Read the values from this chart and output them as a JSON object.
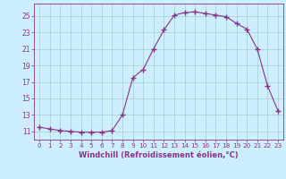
{
  "x": [
    0,
    1,
    2,
    3,
    4,
    5,
    6,
    7,
    8,
    9,
    10,
    11,
    12,
    13,
    14,
    15,
    16,
    17,
    18,
    19,
    20,
    21,
    22,
    23
  ],
  "y": [
    11.5,
    11.3,
    11.1,
    11.0,
    10.9,
    10.9,
    10.9,
    11.1,
    13.0,
    17.5,
    18.5,
    21.0,
    23.3,
    25.1,
    25.4,
    25.5,
    25.3,
    25.1,
    24.9,
    24.1,
    23.4,
    21.0,
    16.5,
    13.5
  ],
  "line_color": "#883388",
  "marker": "+",
  "marker_size": 4,
  "marker_lw": 1.0,
  "xlabel": "Windchill (Refroidissement éolien,°C)",
  "xlim": [
    -0.5,
    23.5
  ],
  "ylim": [
    10.0,
    26.5
  ],
  "yticks": [
    11,
    13,
    15,
    17,
    19,
    21,
    23,
    25
  ],
  "xticks": [
    0,
    1,
    2,
    3,
    4,
    5,
    6,
    7,
    8,
    9,
    10,
    11,
    12,
    13,
    14,
    15,
    16,
    17,
    18,
    19,
    20,
    21,
    22,
    23
  ],
  "background_color": "#cceeff",
  "grid_color": "#aacccc",
  "tick_color": "#883388",
  "label_color": "#883388"
}
